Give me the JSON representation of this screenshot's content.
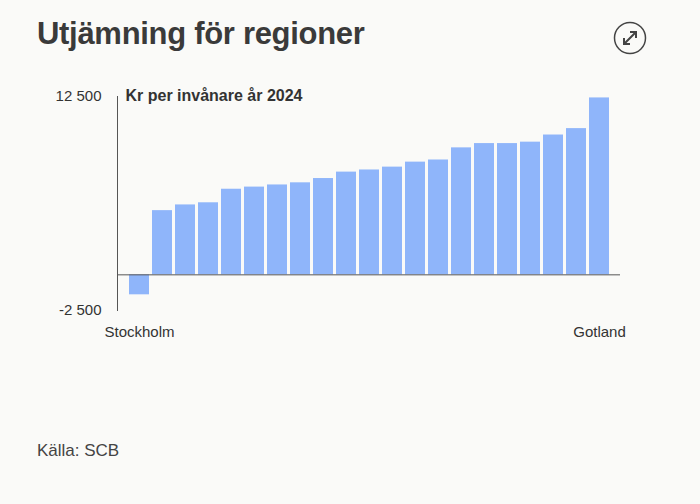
{
  "chart_data": {
    "type": "bar",
    "title": "Utjämning för regioner",
    "subtitle": "Kr per invånare år 2024",
    "caption": "Källa: SCB",
    "categories": [
      "Stockholm",
      null,
      null,
      null,
      null,
      null,
      null,
      null,
      null,
      null,
      null,
      null,
      null,
      null,
      null,
      null,
      null,
      null,
      null,
      null,
      "Gotland"
    ],
    "values": [
      -1400,
      4500,
      4900,
      5050,
      6000,
      6150,
      6300,
      6450,
      6750,
      7200,
      7350,
      7550,
      7900,
      8050,
      8900,
      9200,
      9200,
      9300,
      9800,
      10250,
      12400
    ],
    "color": "#8fb5fa",
    "ylim": [
      -2500,
      12500
    ],
    "yticks": [
      {
        "value": -2500,
        "label": "-2 500"
      },
      {
        "value": 12500,
        "label": "12 500"
      }
    ],
    "grid": false
  }
}
